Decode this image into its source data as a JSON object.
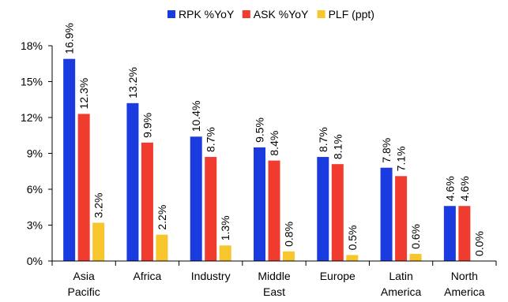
{
  "chart_data": {
    "type": "bar",
    "categories": [
      [
        "Asia",
        "Pacific"
      ],
      [
        "Africa"
      ],
      [
        "Industry"
      ],
      [
        "Middle",
        "East"
      ],
      [
        "Europe"
      ],
      [
        "Latin",
        "America"
      ],
      [
        "North",
        "America"
      ]
    ],
    "series": [
      {
        "name": "RPK %YoY",
        "color": "#1a3be0",
        "values": [
          16.9,
          13.2,
          10.4,
          9.5,
          8.7,
          7.8,
          4.6
        ],
        "labels": [
          "16.9%",
          "13.2%",
          "10.4%",
          "9.5%",
          "8.7%",
          "7.8%",
          "4.6%"
        ]
      },
      {
        "name": "ASK %YoY",
        "color": "#f03c2e",
        "values": [
          12.3,
          9.9,
          8.7,
          8.4,
          8.1,
          7.1,
          4.6
        ],
        "labels": [
          "12.3%",
          "9.9%",
          "8.7%",
          "8.4%",
          "8.1%",
          "7.1%",
          "4.6%"
        ]
      },
      {
        "name": "PLF (ppt)",
        "color": "#f7c52c",
        "values": [
          3.2,
          2.2,
          1.3,
          0.8,
          0.5,
          0.6,
          0.0
        ],
        "labels": [
          "3.2%",
          "2.2%",
          "1.3%",
          "0.8%",
          "0.5%",
          "0.6%",
          "0.0%"
        ]
      }
    ],
    "yticks": [
      "0%",
      "3%",
      "6%",
      "9%",
      "12%",
      "15%",
      "18%"
    ],
    "ylim": [
      0,
      18
    ],
    "legend_position": "top-center",
    "grid": false
  }
}
